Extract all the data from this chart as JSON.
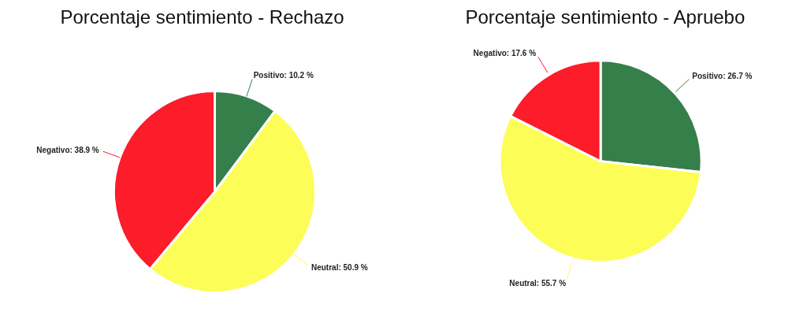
{
  "chart_data": [
    {
      "type": "pie",
      "title": "Porcentaje sentimiento - Rechazo",
      "categories": [
        "Positivo",
        "Neutral",
        "Negativo"
      ],
      "values": [
        10.2,
        50.9,
        38.9
      ],
      "colors": [
        "#357f4b",
        "#fdfd57",
        "#fc1c2a"
      ],
      "value_labels": [
        "10.2 %",
        "50.9 %",
        "38.9 %"
      ]
    },
    {
      "type": "pie",
      "title": "Porcentaje sentimiento - Apruebo",
      "categories": [
        "Positivo",
        "Neutral",
        "Negativo"
      ],
      "values": [
        26.7,
        55.7,
        17.6
      ],
      "colors": [
        "#357f4b",
        "#fdfd57",
        "#fc1c2a"
      ],
      "value_labels": [
        "26.7 %",
        "55.7 %",
        "17.6 %"
      ]
    }
  ]
}
